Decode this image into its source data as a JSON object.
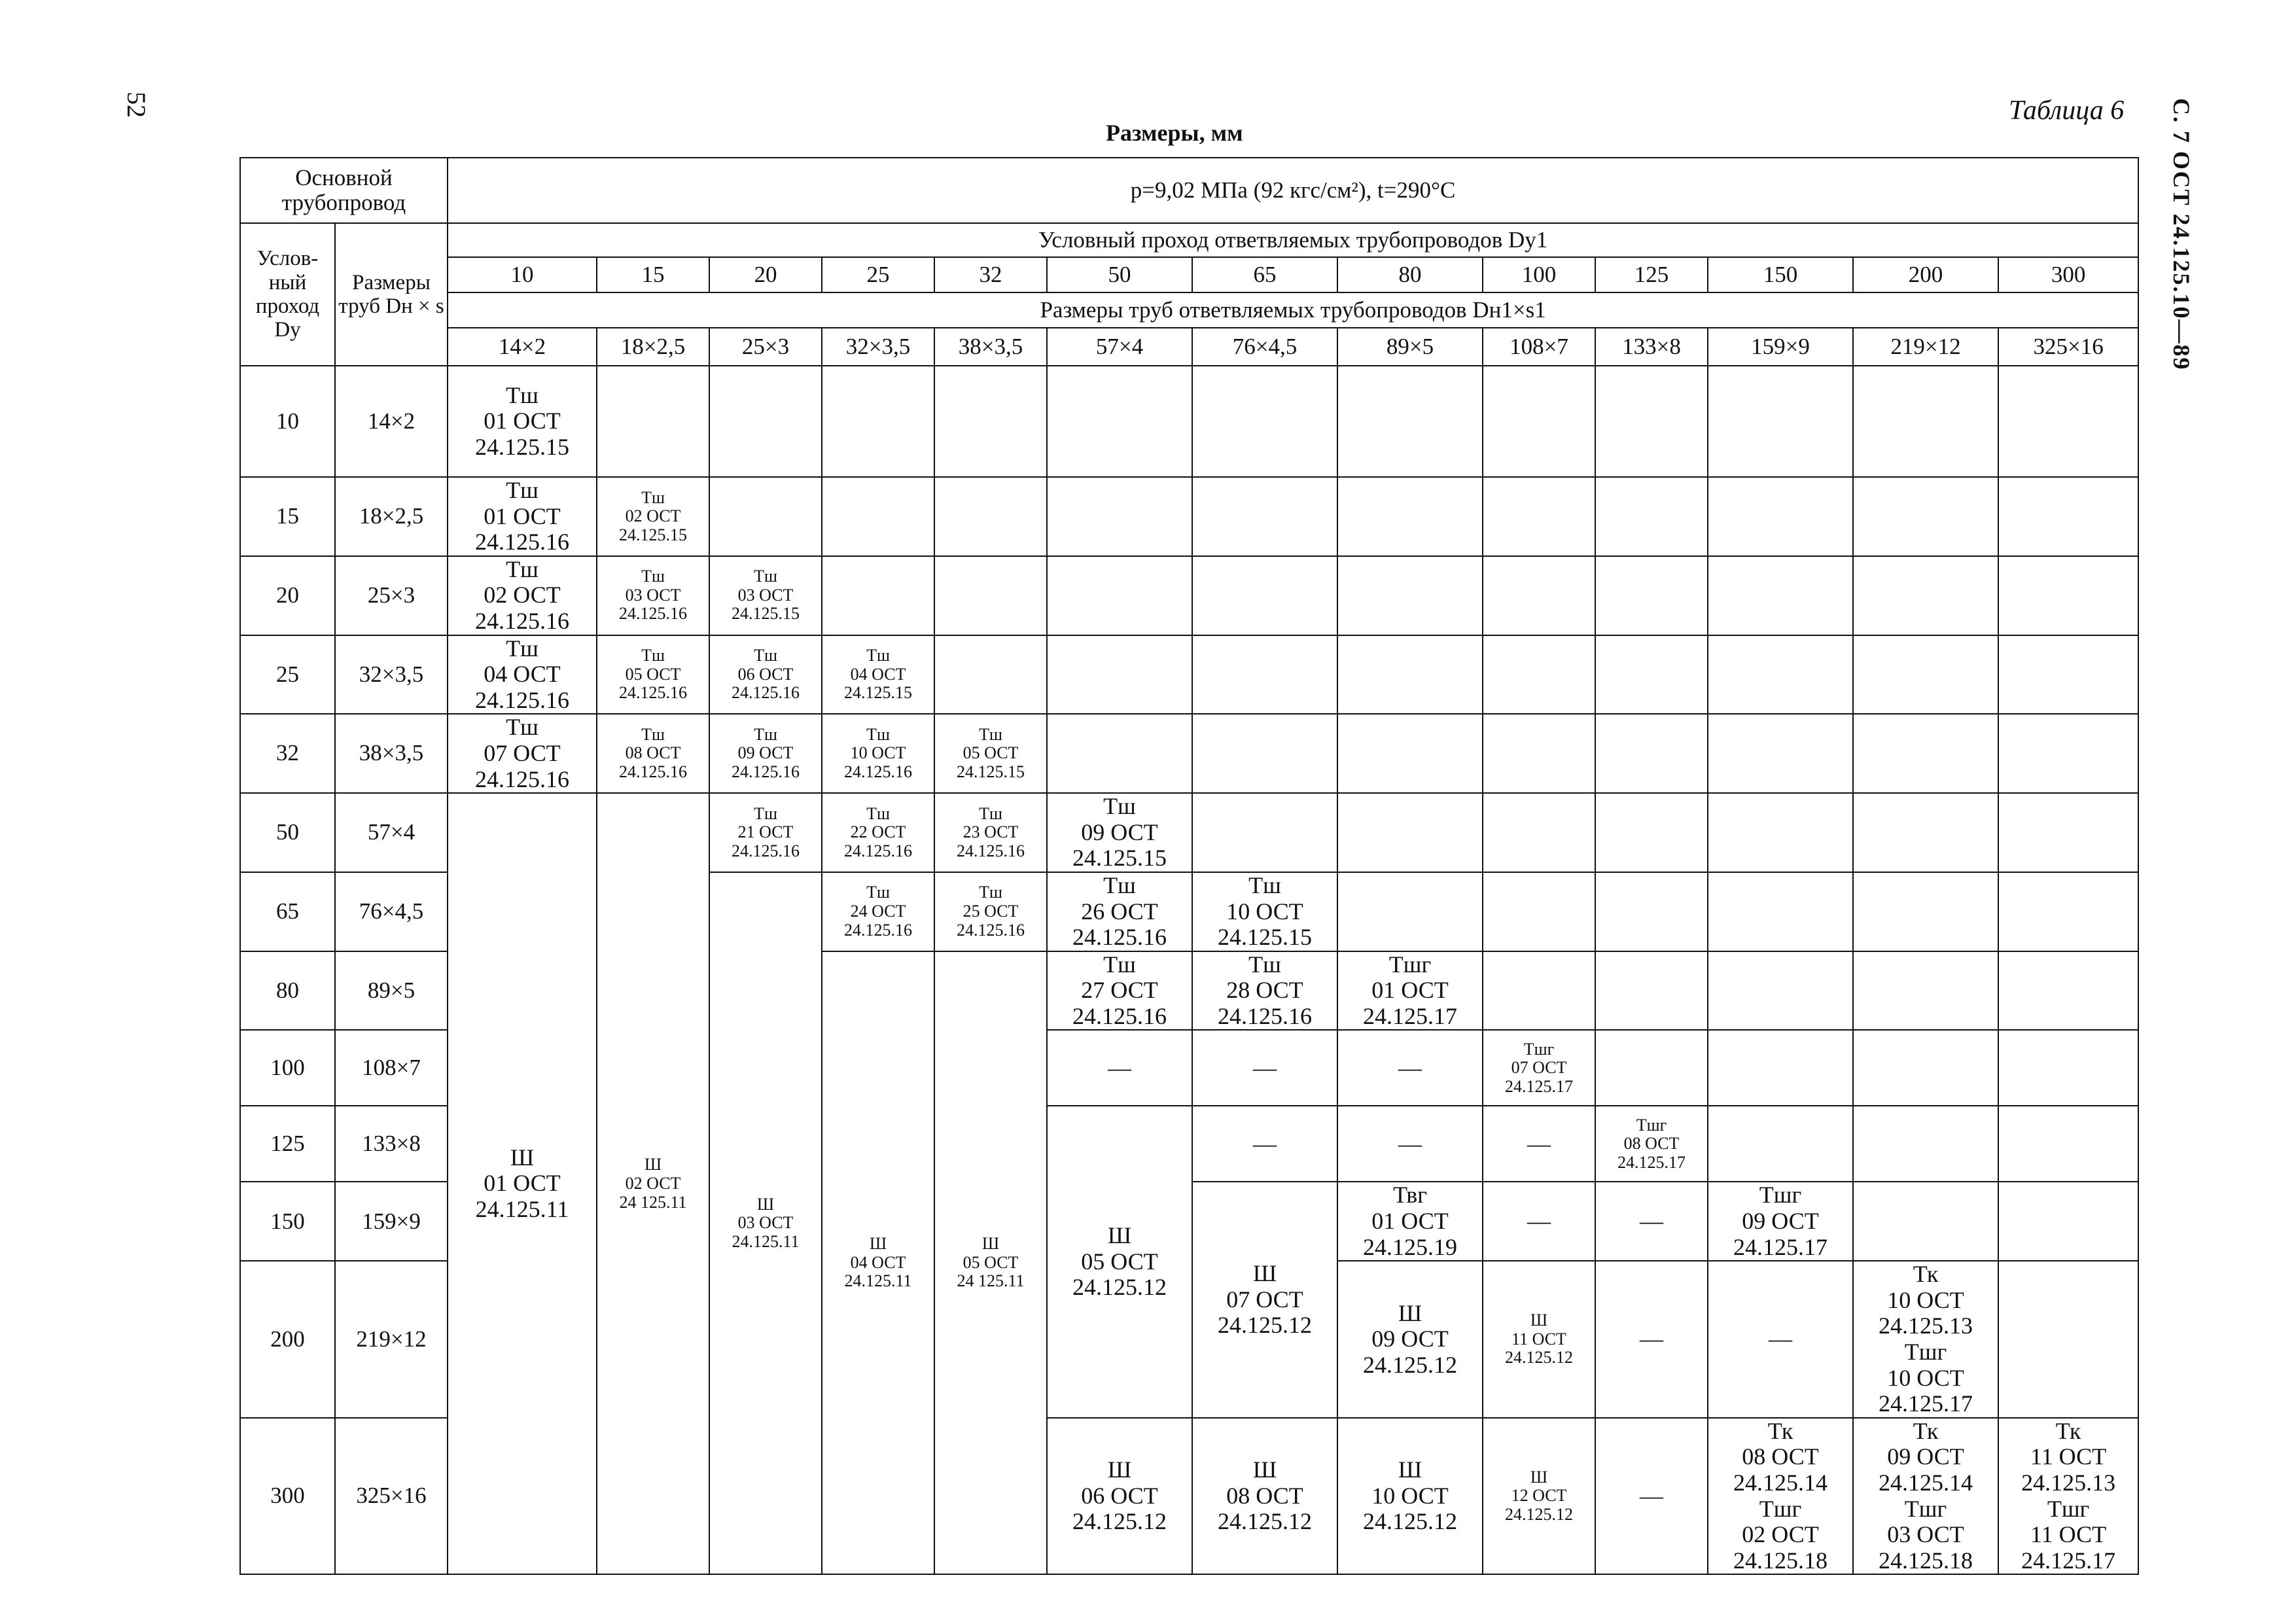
{
  "page_number": "52",
  "side_header": "С. 7 ОСТ 24.125.10—89",
  "table_label": "Таблица 6",
  "dims_title": "Размеры, мм",
  "header": {
    "main_pipe": "Основной трубопровод",
    "cond_pass": "Услов-ный проход Dу",
    "pipe_sizes": "Размеры труб Dн × s",
    "pressure": "p=9,02 МПа (92 кгс/см²), t=290°С",
    "branch_pass": "Условный проход ответвляемых трубопроводов Dу1",
    "branch_sizes": "Размеры труб ответвляемых трубопроводов Dн1×s1",
    "dy1": [
      "10",
      "15",
      "20",
      "25",
      "32",
      "50",
      "65",
      "80",
      "100",
      "125",
      "150",
      "200",
      "300"
    ],
    "sizes1": [
      "14×2",
      "18×2,5",
      "25×3",
      "32×3,5",
      "38×3,5",
      "57×4",
      "76×4,5",
      "89×5",
      "108×7",
      "133×8",
      "159×9",
      "219×12",
      "325×16"
    ]
  },
  "rows": [
    {
      "dy": "10",
      "size": "14×2"
    },
    {
      "dy": "15",
      "size": "18×2,5"
    },
    {
      "dy": "20",
      "size": "25×3"
    },
    {
      "dy": "25",
      "size": "32×3,5"
    },
    {
      "dy": "32",
      "size": "38×3,5"
    },
    {
      "dy": "50",
      "size": "57×4"
    },
    {
      "dy": "65",
      "size": "76×4,5"
    },
    {
      "dy": "80",
      "size": "89×5"
    },
    {
      "dy": "100",
      "size": "108×7"
    },
    {
      "dy": "125",
      "size": "133×8"
    },
    {
      "dy": "150",
      "size": "159×9"
    },
    {
      "dy": "200",
      "size": "219×12"
    },
    {
      "dy": "300",
      "size": "325×16"
    }
  ],
  "cells": {
    "r10c10": [
      "Тш",
      "01 ОСТ",
      "24.125.15"
    ],
    "r15c10": [
      "Тш",
      "01 ОСТ",
      "24.125.16"
    ],
    "r15c15": [
      "Тш",
      "02 ОСТ",
      "24.125.15"
    ],
    "r20c10": [
      "Тш",
      "02 ОСТ",
      "24.125.16"
    ],
    "r20c15": [
      "Тш",
      "03 ОСТ",
      "24.125.16"
    ],
    "r20c20": [
      "Тш",
      "03 ОСТ",
      "24.125.15"
    ],
    "r25c10": [
      "Тш",
      "04 ОСТ",
      "24.125.16"
    ],
    "r25c15": [
      "Тш",
      "05 ОСТ",
      "24.125.16"
    ],
    "r25c20": [
      "Тш",
      "06 ОСТ",
      "24.125.16"
    ],
    "r25c25": [
      "Тш",
      "04 ОСТ",
      "24.125.15"
    ],
    "r32c10": [
      "Тш",
      "07 ОСТ",
      "24.125.16"
    ],
    "r32c15": [
      "Тш",
      "08 ОСТ",
      "24.125.16"
    ],
    "r32c20": [
      "Тш",
      "09 ОСТ",
      "24.125.16"
    ],
    "r32c25": [
      "Тш",
      "10 ОСТ",
      "24.125.16"
    ],
    "r32c32": [
      "Тш",
      "05 ОСТ",
      "24.125.15"
    ],
    "r50c20": [
      "Тш",
      "21 ОСТ",
      "24.125.16"
    ],
    "r50c25": [
      "Тш",
      "22 ОСТ",
      "24.125.16"
    ],
    "r50c32": [
      "Тш",
      "23 ОСТ",
      "24.125.16"
    ],
    "r50c50": [
      "Тш",
      "09 ОСТ",
      "24.125.15"
    ],
    "r65c25": [
      "Тш",
      "24 ОСТ",
      "24.125.16"
    ],
    "r65c32": [
      "Тш",
      "25 ОСТ",
      "24.125.16"
    ],
    "r65c50": [
      "Тш",
      "26 ОСТ",
      "24.125.16"
    ],
    "r65c65": [
      "Тш",
      "10 ОСТ",
      "24.125.15"
    ],
    "r80c50": [
      "Тш",
      "27 ОСТ",
      "24.125.16"
    ],
    "r80c65": [
      "Тш",
      "28 ОСТ",
      "24.125.16"
    ],
    "r80c80": [
      "Тшг",
      "01 ОСТ",
      "24.125.17"
    ],
    "r100c100": [
      "Тшг",
      "07 ОСТ",
      "24.125.17"
    ],
    "r125c125": [
      "Тшг",
      "08 ОСТ",
      "24.125.17"
    ],
    "r150c80": [
      "Твг",
      "01 ОСТ",
      "24.125.19"
    ],
    "r150c150": [
      "Тшг",
      "09 ОСТ",
      "24.125.17"
    ],
    "r200c80": [
      "Ш",
      "09 ОСТ",
      "24.125.12"
    ],
    "r200c100": [
      "Ш",
      "11 ОСТ",
      "24.125.12"
    ],
    "r200c200": [
      "Тк",
      "10 ОСТ",
      "24.125.13",
      "Тшг",
      "10 ОСТ",
      "24.125.17"
    ],
    "r300c50": [
      "Ш",
      "06 ОСТ",
      "24.125.12"
    ],
    "r300c65": [
      "Ш",
      "08 ОСТ",
      "24.125.12"
    ],
    "r300c80": [
      "Ш",
      "10 ОСТ",
      "24.125.12"
    ],
    "r300c100": [
      "Ш",
      "12 ОСТ",
      "24.125.12"
    ],
    "r300c150": [
      "Тк",
      "08 ОСТ",
      "24.125.14",
      "Тшг",
      "02 ОСТ",
      "24.125.18"
    ],
    "r300c200": [
      "Тк",
      "09 ОСТ",
      "24.125.14",
      "Тшг",
      "03 ОСТ",
      "24.125.18"
    ],
    "r300c300": [
      "Тк",
      "11 ОСТ",
      "24.125.13",
      "Тшг",
      "11 ОСТ",
      "24.125.17"
    ],
    "m10": [
      "Ш",
      "01 ОСТ",
      "24.125.11"
    ],
    "m15": [
      "Ш",
      "02 ОСТ",
      "24 125.11"
    ],
    "m20": [
      "Ш",
      "03 ОСТ",
      "24.125.11"
    ],
    "m25": [
      "Ш",
      "04 ОСТ",
      "24.125.11"
    ],
    "m32": [
      "Ш",
      "05 ОСТ",
      "24 125.11"
    ],
    "m50": [
      "Ш",
      "05 ОСТ",
      "24.125.12"
    ],
    "m65": [
      "Ш",
      "07 ОСТ",
      "24.125.12"
    ]
  },
  "dash": "—"
}
